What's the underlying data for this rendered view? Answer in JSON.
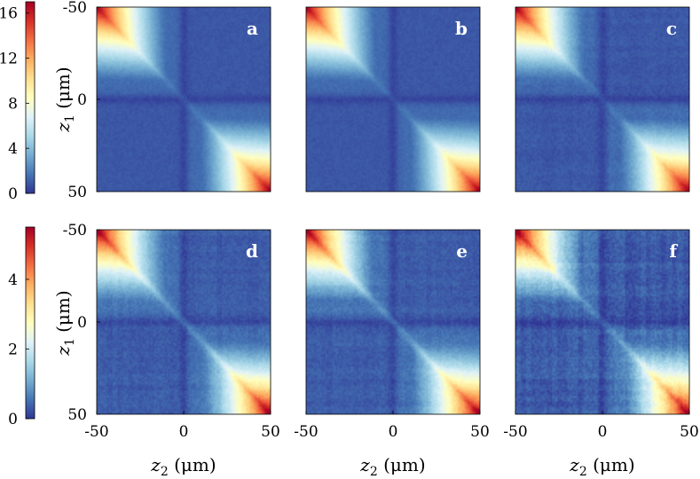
{
  "chart_data": {
    "type": "heatmap",
    "x_axis": {
      "label_var": "z",
      "label_sub": "2",
      "label_unit": " (μm)",
      "range": [
        -50,
        50
      ],
      "ticks": [
        "-50",
        "0",
        "50"
      ]
    },
    "y_axis": {
      "label_var": "z",
      "label_sub": "1",
      "label_unit": " (μm)",
      "range": [
        -50,
        50
      ],
      "ticks": [
        "-50",
        "0",
        "50"
      ]
    },
    "colorbars": [
      {
        "row": 0,
        "range": [
          0,
          17
        ],
        "ticks": [
          "0",
          "4",
          "8",
          "12",
          "16"
        ]
      },
      {
        "row": 1,
        "range": [
          0,
          5.5
        ],
        "ticks": [
          "0",
          "2",
          "4"
        ]
      }
    ],
    "colormap": [
      "#313695",
      "#4575b4",
      "#74add1",
      "#abd9e9",
      "#e0f3f8",
      "#ffffbf",
      "#fee090",
      "#fdae61",
      "#f46d43",
      "#d73027",
      "#a50026"
    ],
    "panels": [
      {
        "label": "a",
        "row": 0,
        "col": 0,
        "corner_peak": 17,
        "base": 1.5,
        "noise": 0.03,
        "stripes": 0.0
      },
      {
        "label": "b",
        "row": 0,
        "col": 1,
        "corner_peak": 17,
        "base": 1.5,
        "noise": 0.03,
        "stripes": 0.0
      },
      {
        "label": "c",
        "row": 0,
        "col": 2,
        "corner_peak": 17,
        "base": 1.5,
        "noise": 0.04,
        "stripes": 0.02
      },
      {
        "label": "d",
        "row": 1,
        "col": 0,
        "corner_peak": 5.5,
        "base": 0.55,
        "noise": 0.05,
        "stripes": 0.03
      },
      {
        "label": "e",
        "row": 1,
        "col": 1,
        "corner_peak": 5.5,
        "base": 0.55,
        "noise": 0.05,
        "stripes": 0.03
      },
      {
        "label": "f",
        "row": 1,
        "col": 2,
        "corner_peak": 5.5,
        "base": 0.55,
        "noise": 0.07,
        "stripes": 0.06
      }
    ]
  }
}
